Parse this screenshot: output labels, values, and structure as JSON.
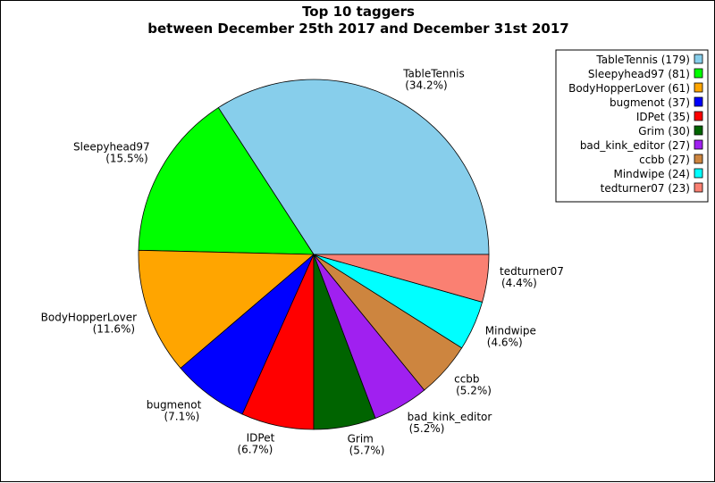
{
  "chart_data": {
    "type": "pie",
    "title": "Top 10 taggers",
    "subtitle": "between December 25th 2017 and December 31st 2017",
    "slices": [
      {
        "label": "TableTennis",
        "value": 179,
        "percent": "34.2%",
        "color": "#87ceeb"
      },
      {
        "label": "Sleepyhead97",
        "value": 81,
        "percent": "15.5%",
        "color": "#00ff00"
      },
      {
        "label": "BodyHopperLover",
        "value": 61,
        "percent": "11.6%",
        "color": "#ffa500"
      },
      {
        "label": "bugmenot",
        "value": 37,
        "percent": "7.1%",
        "color": "#0000ff"
      },
      {
        "label": "IDPet",
        "value": 35,
        "percent": "6.7%",
        "color": "#ff0000"
      },
      {
        "label": "Grim",
        "value": 30,
        "percent": "5.7%",
        "color": "#006400"
      },
      {
        "label": "bad_kink_editor",
        "value": 27,
        "percent": "5.2%",
        "color": "#a020f0"
      },
      {
        "label": "ccbb",
        "value": 27,
        "percent": "5.2%",
        "color": "#cd853f"
      },
      {
        "label": "Mindwipe",
        "value": 24,
        "percent": "4.6%",
        "color": "#00ffff"
      },
      {
        "label": "tedturner07",
        "value": 23,
        "percent": "4.4%",
        "color": "#fa8072"
      }
    ],
    "legend": {
      "placement": "top-right",
      "entries": [
        "TableTennis (179)",
        "Sleepyhead97 (81)",
        "BodyHopperLover (61)",
        "bugmenot (37)",
        "IDPet (35)",
        "Grim (30)",
        "bad_kink_editor (27)",
        "ccbb (27)",
        "Mindwipe (24)",
        "tedturner07 (23)"
      ]
    }
  }
}
